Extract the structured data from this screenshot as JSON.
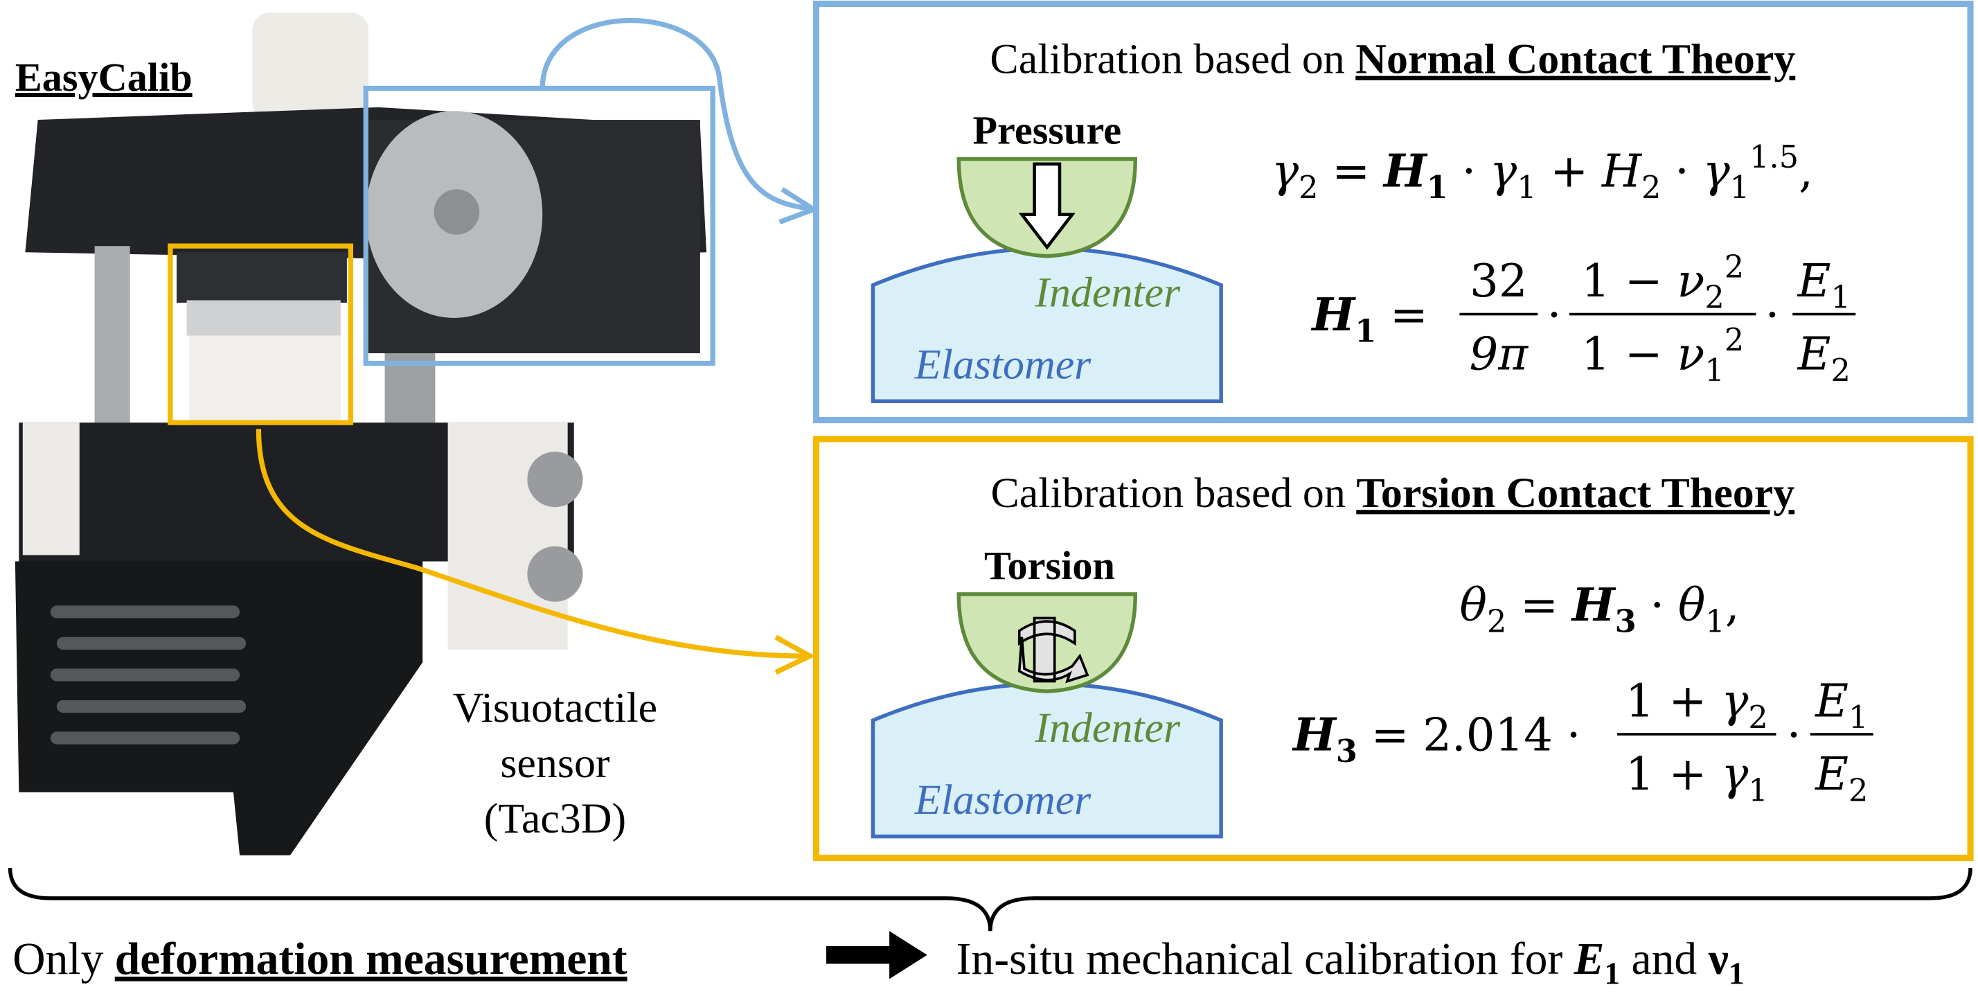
{
  "title": "EasyCalib",
  "sensor_label": [
    "Visuotactile",
    "sensor",
    "(Tac3D)"
  ],
  "normal_panel": {
    "heading_prefix": "Calibration based on ",
    "heading_emphasis": "Normal Contact Theory",
    "action": "Pressure",
    "indenter": "Indenter",
    "elastomer": "Elastomer",
    "eq1": [
      "γ",
      "2",
      "=",
      "H",
      "1",
      "·",
      "γ",
      "1",
      "+",
      "H",
      "2",
      "·",
      "γ",
      "1",
      "1.5",
      ","
    ],
    "eq2": {
      "lhs": [
        "H",
        "1",
        "="
      ],
      "frac_a": {
        "num": [
          "32"
        ],
        "den": [
          "9π"
        ]
      },
      "dot": "·",
      "frac_b": {
        "num": [
          "1 − ",
          "ν",
          "2",
          "2"
        ],
        "den": [
          "1 − ",
          "ν",
          "1",
          "2"
        ]
      },
      "frac_c": {
        "num": [
          "E",
          "1"
        ],
        "den": [
          "E",
          "2"
        ]
      }
    }
  },
  "torsion_panel": {
    "heading_prefix": "Calibration based on ",
    "heading_emphasis": "Torsion Contact Theory",
    "action": "Torsion",
    "indenter": "Indenter",
    "elastomer": "Elastomer",
    "eq1": [
      "θ",
      "2",
      "=",
      "H",
      "3",
      "·",
      "θ",
      "1",
      ","
    ],
    "eq2": {
      "lhs": [
        "H",
        "3",
        "=",
        "2.014",
        "·"
      ],
      "dot": "·",
      "frac_b": {
        "num": [
          "1 + ",
          "γ",
          "2"
        ],
        "den": [
          "1 + ",
          "γ",
          "1"
        ]
      },
      "frac_c": {
        "num": [
          "E",
          "1"
        ],
        "den": [
          "E",
          "2"
        ]
      }
    }
  },
  "bottom": {
    "prefix": "Only ",
    "emphasis": "deformation measurement",
    "result": "In-situ mechanical calibration for ",
    "e": "E",
    "e_sub": "1",
    "and": " and ",
    "nu": "ν",
    "nu_sub": "1"
  }
}
